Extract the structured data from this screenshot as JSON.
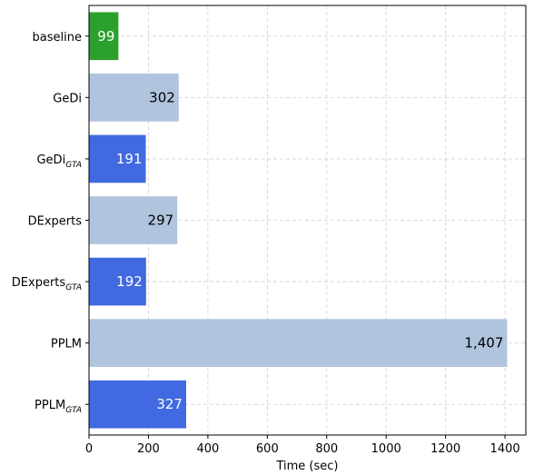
{
  "chart_data": {
    "type": "bar",
    "orientation": "horizontal",
    "categories": [
      {
        "name": "baseline",
        "sub": ""
      },
      {
        "name": "GeDi",
        "sub": ""
      },
      {
        "name": "GeDi",
        "sub": "GTA"
      },
      {
        "name": "DExperts",
        "sub": ""
      },
      {
        "name": "DExperts",
        "sub": "GTA"
      },
      {
        "name": "PPLM",
        "sub": ""
      },
      {
        "name": "PPLM",
        "sub": "GTA"
      }
    ],
    "values": [
      99,
      302,
      191,
      297,
      192,
      1407,
      327
    ],
    "value_labels": [
      "99",
      "302",
      "191",
      "297",
      "192",
      "1,407",
      "327"
    ],
    "bar_colors": [
      "#2ca02c",
      "#b0c4de",
      "#4169e1",
      "#b0c4de",
      "#4169e1",
      "#b0c4de",
      "#4169e1"
    ],
    "label_colors": [
      "#ffffff",
      "#000000",
      "#ffffff",
      "#000000",
      "#ffffff",
      "#000000",
      "#ffffff"
    ],
    "xlabel": "Time (sec)",
    "xlim": [
      0,
      1470
    ],
    "xticks": [
      0,
      200,
      400,
      600,
      800,
      1000,
      1200,
      1400
    ],
    "grid": true
  }
}
